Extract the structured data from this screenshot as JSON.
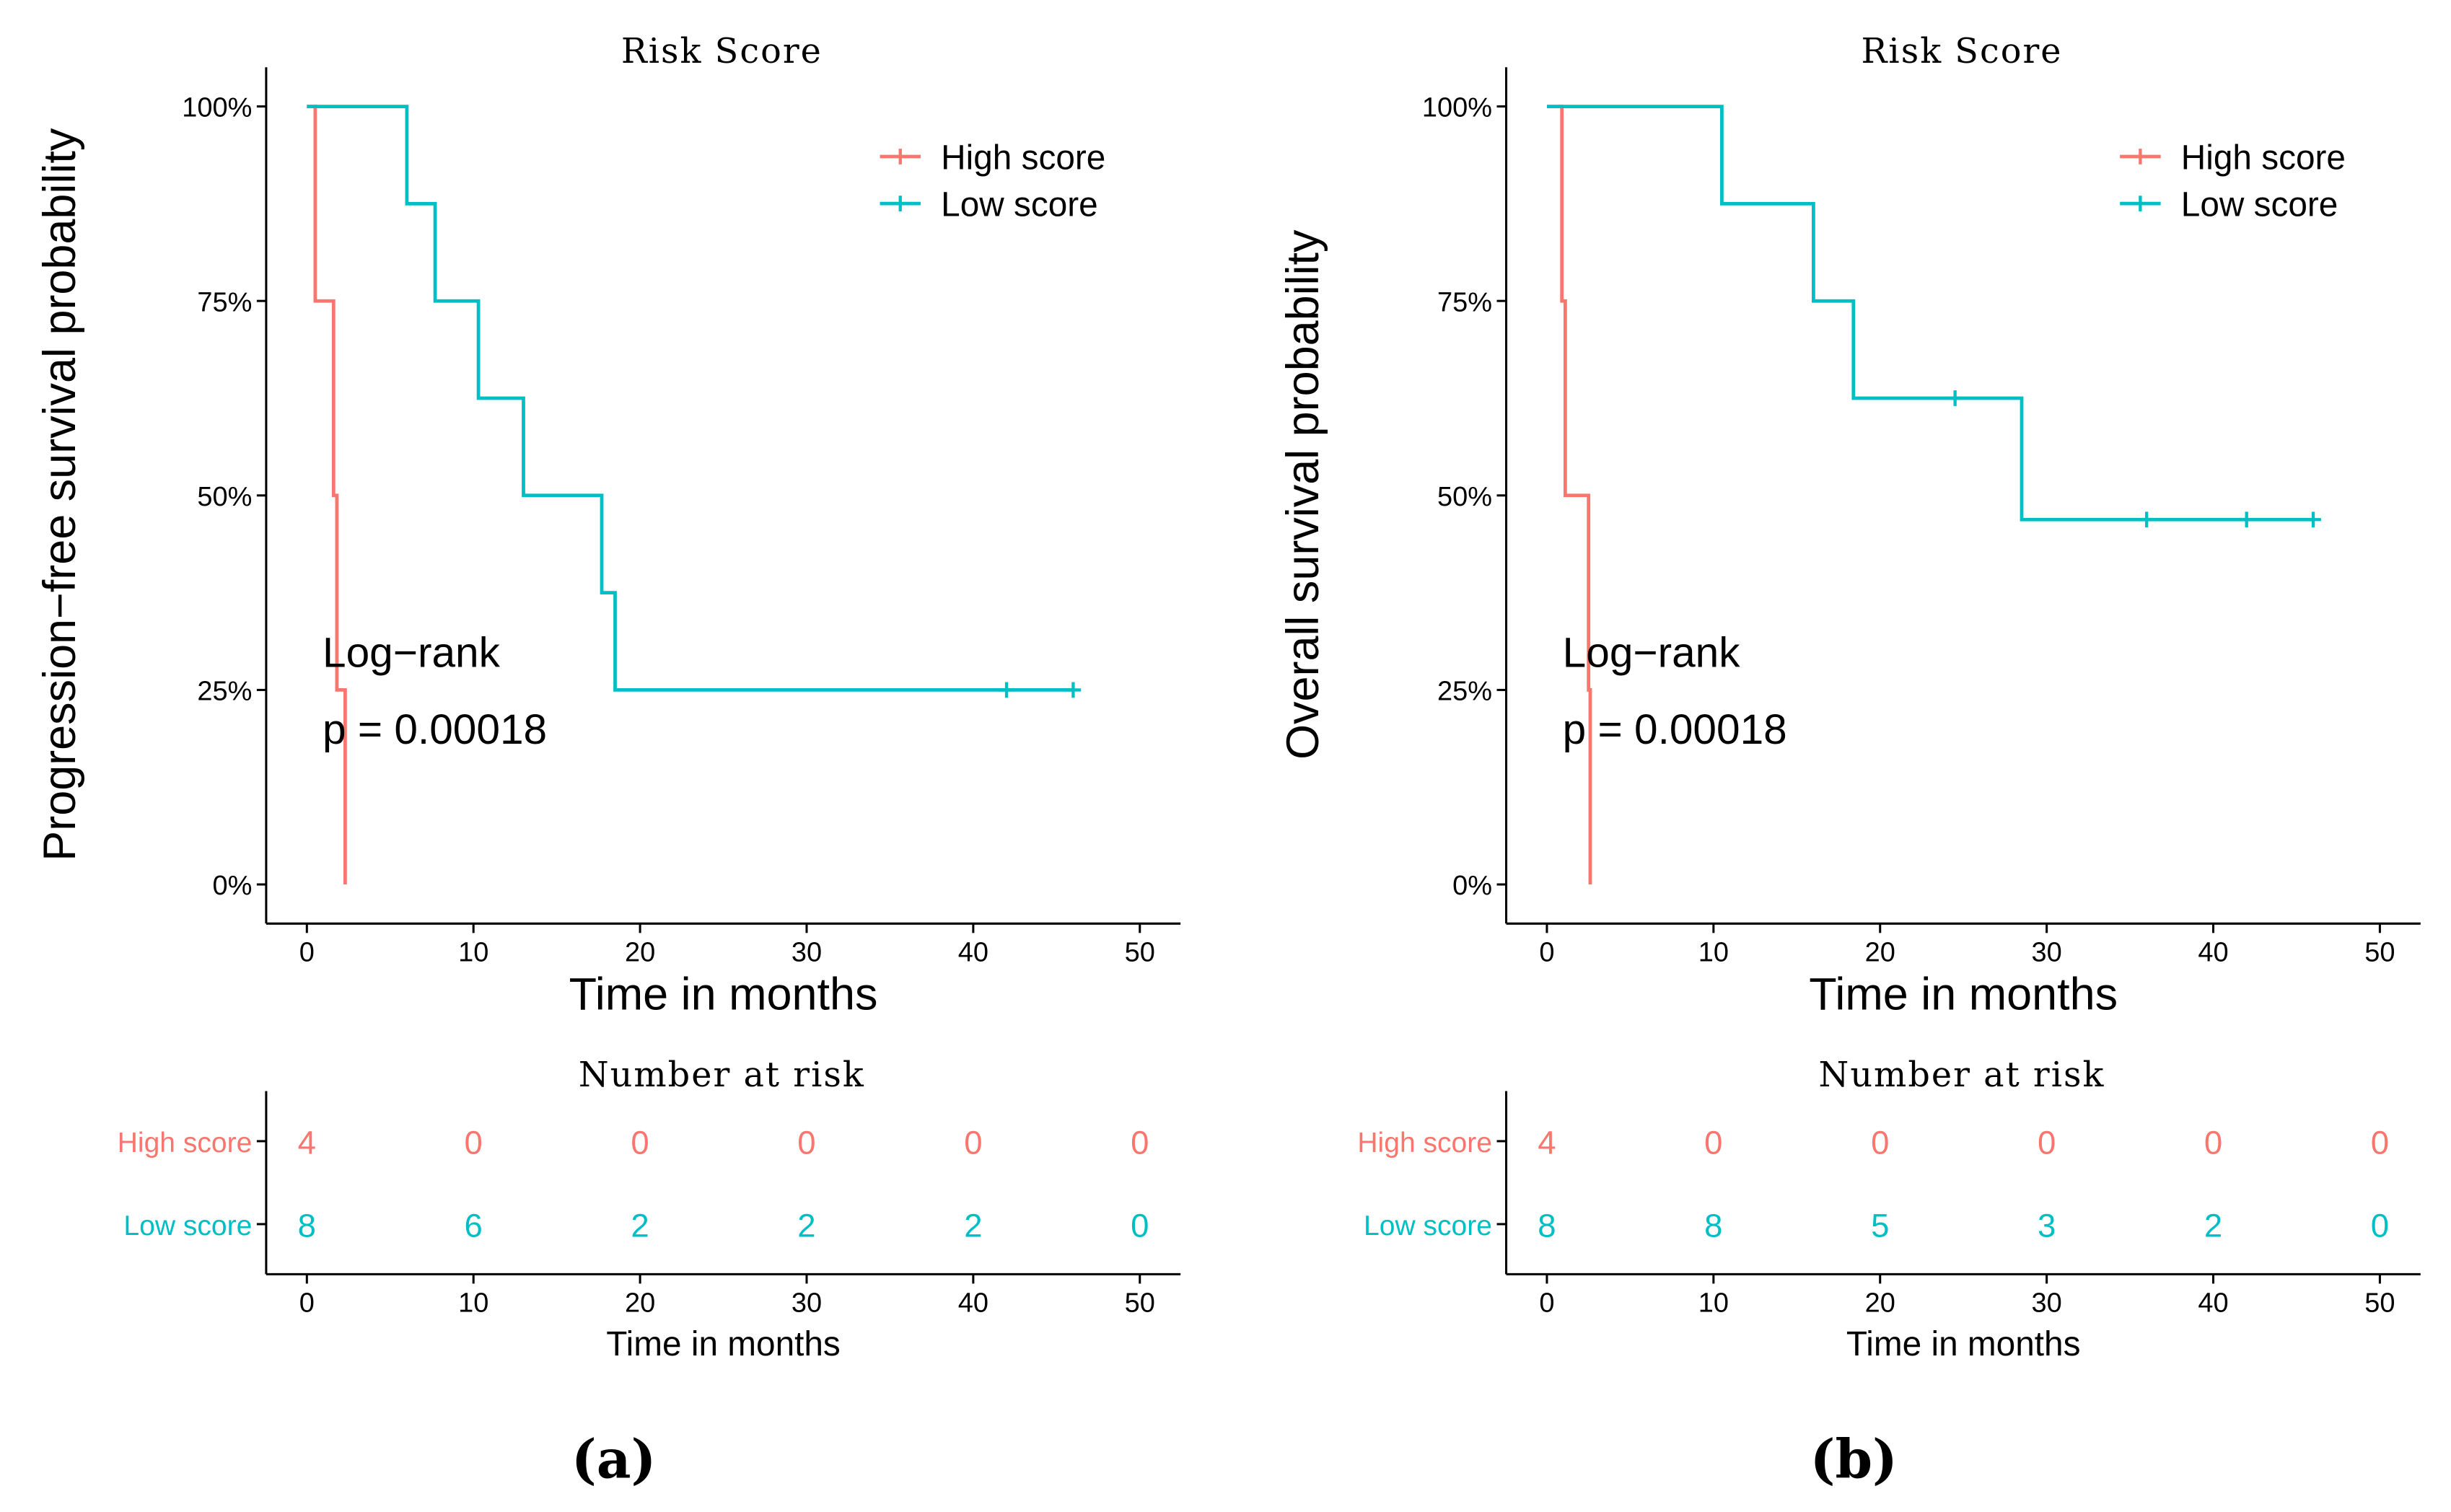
{
  "colors": {
    "high": "#F8766D",
    "low": "#00BFC4",
    "axis": "#000000"
  },
  "chart_data": [
    {
      "type": "line",
      "subtype": "kaplan-meier",
      "panel_label": "(a)",
      "title": "Risk Score",
      "xlabel": "Time in months",
      "ylabel": "Progression−free survival probability",
      "xlim": [
        0,
        50
      ],
      "ylim": [
        0,
        1
      ],
      "x_ticks": [
        "0",
        "10",
        "20",
        "30",
        "40",
        "50"
      ],
      "y_ticks": [
        "0%",
        "25%",
        "50%",
        "75%",
        "100%"
      ],
      "legend": [
        "High score",
        "Low score"
      ],
      "legend_position": "top-right",
      "annotation": [
        "Log−rank",
        "p = 0.00018"
      ],
      "series": [
        {
          "name": "High score",
          "color": "#F8766D",
          "x": [
            0,
            0.5,
            0.5,
            1.6,
            1.6,
            1.8,
            1.8,
            2.3,
            2.3
          ],
          "y": [
            1,
            1,
            0.75,
            0.75,
            0.5,
            0.5,
            0.25,
            0.25,
            0
          ],
          "censored": []
        },
        {
          "name": "Low score",
          "color": "#00BFC4",
          "x": [
            0,
            6,
            6,
            7.7,
            7.7,
            10.3,
            10.3,
            13,
            13,
            17.7,
            17.7,
            18.5,
            18.5,
            46
          ],
          "y": [
            1,
            1,
            0.875,
            0.875,
            0.75,
            0.75,
            0.625,
            0.625,
            0.5,
            0.5,
            0.375,
            0.375,
            0.25,
            0.25
          ],
          "censored": [
            {
              "x": 42,
              "y": 0.25
            },
            {
              "x": 46,
              "y": 0.25
            }
          ]
        }
      ],
      "risk_table": {
        "title": "Number at risk",
        "xlabel": "Time in months",
        "times": [
          0,
          10,
          20,
          30,
          40,
          50
        ],
        "rows": [
          {
            "name": "High score",
            "values": [
              "4",
              "0",
              "0",
              "0",
              "0",
              "0"
            ]
          },
          {
            "name": "Low score",
            "values": [
              "8",
              "6",
              "2",
              "2",
              "2",
              "0"
            ]
          }
        ]
      }
    },
    {
      "type": "line",
      "subtype": "kaplan-meier",
      "panel_label": "(b)",
      "title": "Risk Score",
      "xlabel": "Time in months",
      "ylabel": "Overall survival probability",
      "xlim": [
        0,
        50
      ],
      "ylim": [
        0,
        1
      ],
      "x_ticks": [
        "0",
        "10",
        "20",
        "30",
        "40",
        "50"
      ],
      "y_ticks": [
        "0%",
        "25%",
        "50%",
        "75%",
        "100%"
      ],
      "legend": [
        "High score",
        "Low score"
      ],
      "legend_position": "top-right",
      "annotation": [
        "Log−rank",
        "p = 0.00018"
      ],
      "series": [
        {
          "name": "High score",
          "color": "#F8766D",
          "x": [
            0,
            0.9,
            0.9,
            1.1,
            1.1,
            2.5,
            2.5,
            2.6,
            2.6
          ],
          "y": [
            1,
            1,
            0.75,
            0.75,
            0.5,
            0.5,
            0.25,
            0.25,
            0
          ],
          "censored": []
        },
        {
          "name": "Low score",
          "color": "#00BFC4",
          "x": [
            0,
            10.5,
            10.5,
            16,
            16,
            18.4,
            18.4,
            28.5,
            28.5,
            46
          ],
          "y": [
            1,
            1,
            0.875,
            0.875,
            0.75,
            0.75,
            0.625,
            0.625,
            0.469,
            0.469
          ],
          "censored": [
            {
              "x": 24.5,
              "y": 0.625
            },
            {
              "x": 36,
              "y": 0.469
            },
            {
              "x": 42,
              "y": 0.469
            },
            {
              "x": 46,
              "y": 0.469
            }
          ]
        }
      ],
      "risk_table": {
        "title": "Number at risk",
        "xlabel": "Time in months",
        "times": [
          0,
          10,
          20,
          30,
          40,
          50
        ],
        "rows": [
          {
            "name": "High score",
            "values": [
              "4",
              "0",
              "0",
              "0",
              "0",
              "0"
            ]
          },
          {
            "name": "Low score",
            "values": [
              "8",
              "8",
              "5",
              "3",
              "2",
              "0"
            ]
          }
        ]
      }
    }
  ]
}
